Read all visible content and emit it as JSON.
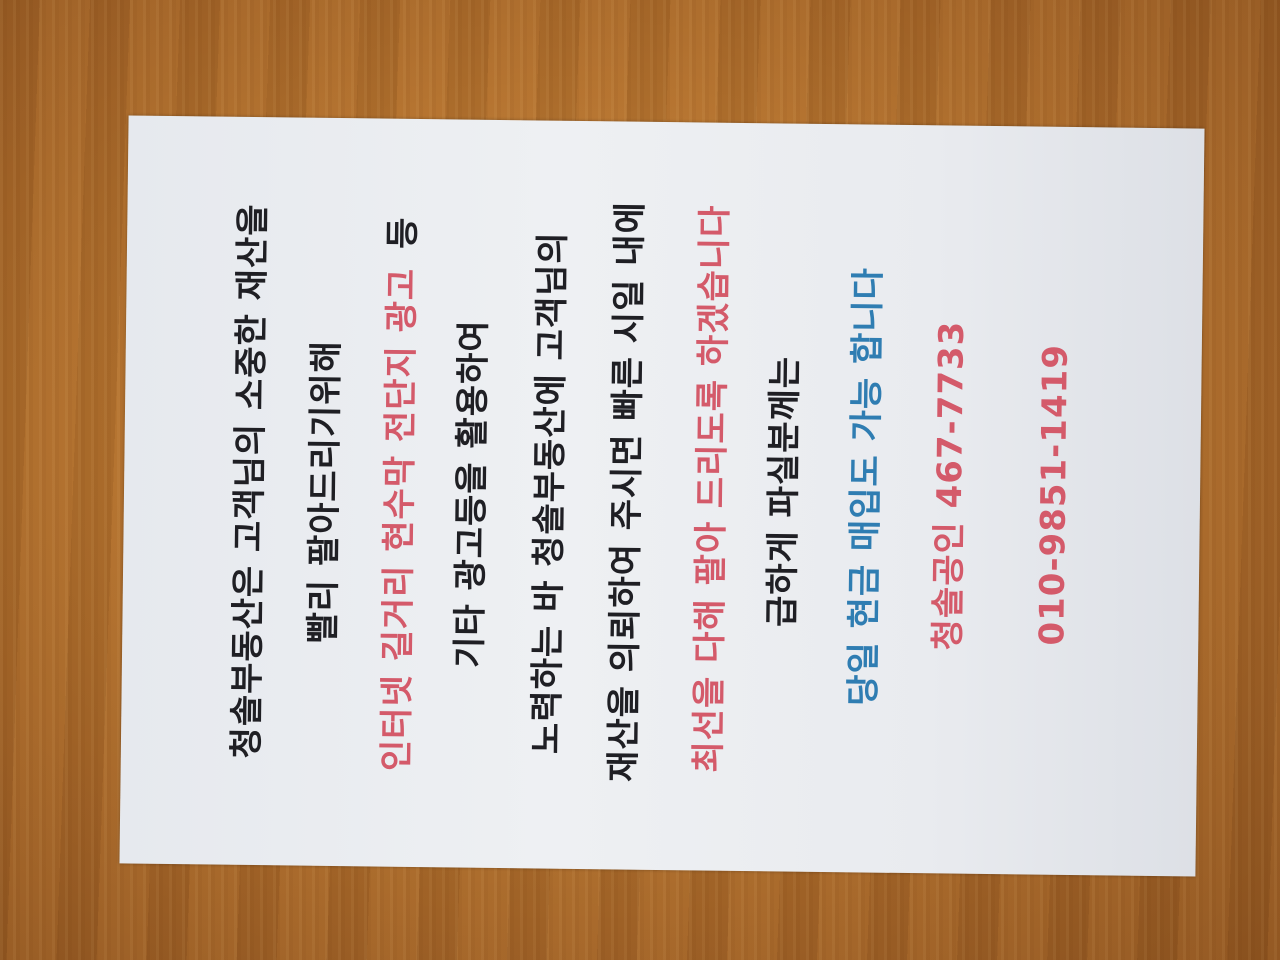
{
  "flyer": {
    "lines": [
      {
        "segments": [
          {
            "text": "청솔부동산은 고객님의 소중한 재산을",
            "color": "dark"
          }
        ]
      },
      {
        "segments": [
          {
            "text": "빨리 팔아드리기위해",
            "color": "dark"
          }
        ]
      },
      {
        "segments": [
          {
            "text": "인터넷 길거리 현수막 전단지 광고",
            "color": "red"
          },
          {
            "text": "등",
            "color": "dark"
          }
        ]
      },
      {
        "segments": [
          {
            "text": "기타 광고등을 활용하여",
            "color": "dark"
          }
        ]
      },
      {
        "segments": [
          {
            "text": "노력하는 바 청솔부동산에 고객님의",
            "color": "dark"
          }
        ]
      },
      {
        "segments": [
          {
            "text": "재산을 의뢰하여 주시면 빠른 시일 내에",
            "color": "dark"
          }
        ]
      },
      {
        "segments": [
          {
            "text": "최선을 다해 팔아 드리도록 하겠습니다",
            "color": "red"
          }
        ]
      },
      {
        "segments": [
          {
            "text": "급하게 파실분께는",
            "color": "dark"
          }
        ]
      },
      {
        "segments": [
          {
            "text": "당일 현금 매입도 가능 합니다",
            "color": "blue"
          }
        ]
      },
      {
        "segments": [
          {
            "text": "청솔공인 467-7733",
            "color": "red"
          }
        ]
      },
      {
        "segments": [
          {
            "text": "010-9851-1419",
            "color": "red"
          }
        ]
      }
    ]
  },
  "colors": {
    "dark": "#1f1f24",
    "red": "#d45a6a",
    "blue": "#2f7db2"
  }
}
